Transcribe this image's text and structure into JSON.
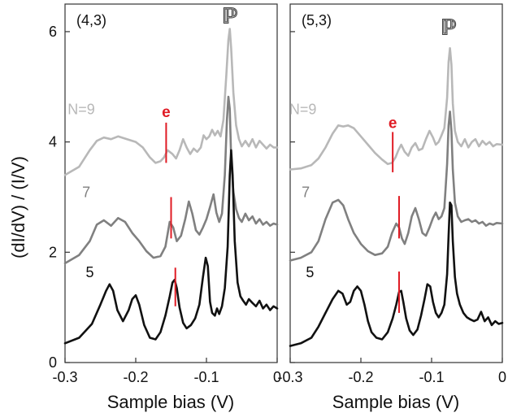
{
  "chart_data": [
    {
      "type": "line",
      "panel_label": "(4,3)",
      "xlabel": "Sample bias (V)",
      "ylabel": "(dI/dV) / (I/V)",
      "xlim": [
        -0.3,
        0
      ],
      "ylim": [
        0,
        6.5
      ],
      "xticks": [
        -0.3,
        -0.2,
        -0.1,
        0
      ],
      "xtick_labels": [
        "-0.3",
        "-0.2",
        "-0.1",
        "0"
      ],
      "yticks": [
        0,
        2,
        4,
        6
      ],
      "ytick_labels": [
        "0",
        "2",
        "4",
        "6"
      ],
      "grid": false,
      "series": [
        {
          "name": "N=9",
          "color": "#b8b8b8",
          "label_pos": [
            -0.277,
            4.5
          ],
          "x": [
            -0.3,
            -0.28,
            -0.265,
            -0.255,
            -0.245,
            -0.235,
            -0.225,
            -0.215,
            -0.2,
            -0.19,
            -0.18,
            -0.172,
            -0.165,
            -0.16,
            -0.155,
            -0.148,
            -0.143,
            -0.138,
            -0.133,
            -0.128,
            -0.123,
            -0.118,
            -0.113,
            -0.108,
            -0.104,
            -0.1,
            -0.096,
            -0.092,
            -0.088,
            -0.084,
            -0.08,
            -0.076,
            -0.072,
            -0.069,
            -0.067,
            -0.065,
            -0.062,
            -0.058,
            -0.054,
            -0.05,
            -0.045,
            -0.04,
            -0.035,
            -0.03,
            -0.025,
            -0.02,
            -0.015,
            -0.01,
            -0.005,
            0
          ],
          "y": [
            3.4,
            3.55,
            3.85,
            4.02,
            4.08,
            4.05,
            4.1,
            4.06,
            4.0,
            3.9,
            3.72,
            3.62,
            3.65,
            3.72,
            3.85,
            3.78,
            3.7,
            3.85,
            4.05,
            3.9,
            3.78,
            3.88,
            3.82,
            3.9,
            4.12,
            4.05,
            4.1,
            4.22,
            4.12,
            4.2,
            4.1,
            4.4,
            5.2,
            5.85,
            6.05,
            5.7,
            4.9,
            4.3,
            4.05,
            3.92,
            4.02,
            3.92,
            4.05,
            3.9,
            4.02,
            3.95,
            3.88,
            3.95,
            3.9,
            3.9
          ]
        },
        {
          "name": "7",
          "color": "#808080",
          "label_pos": [
            -0.27,
            3.0
          ],
          "x": [
            -0.3,
            -0.28,
            -0.265,
            -0.255,
            -0.245,
            -0.235,
            -0.225,
            -0.215,
            -0.205,
            -0.195,
            -0.185,
            -0.175,
            -0.165,
            -0.158,
            -0.152,
            -0.147,
            -0.142,
            -0.136,
            -0.13,
            -0.125,
            -0.12,
            -0.115,
            -0.11,
            -0.105,
            -0.1,
            -0.095,
            -0.09,
            -0.086,
            -0.082,
            -0.078,
            -0.074,
            -0.071,
            -0.069,
            -0.067,
            -0.065,
            -0.062,
            -0.058,
            -0.054,
            -0.05,
            -0.045,
            -0.04,
            -0.035,
            -0.03,
            -0.025,
            -0.02,
            -0.015,
            -0.01,
            -0.005,
            0
          ],
          "y": [
            1.8,
            1.95,
            2.2,
            2.5,
            2.58,
            2.48,
            2.62,
            2.55,
            2.35,
            2.2,
            2.02,
            1.9,
            1.93,
            2.1,
            2.55,
            2.45,
            2.2,
            2.3,
            2.6,
            2.92,
            2.7,
            2.4,
            2.32,
            2.45,
            2.6,
            2.82,
            3.05,
            2.72,
            2.55,
            2.7,
            3.4,
            4.4,
            4.82,
            4.6,
            3.7,
            3.1,
            2.78,
            2.62,
            2.55,
            2.7,
            2.58,
            2.65,
            2.52,
            2.6,
            2.5,
            2.55,
            2.48,
            2.52,
            2.5
          ]
        },
        {
          "name": "5",
          "color": "#111111",
          "label_pos": [
            -0.265,
            1.55
          ],
          "x": [
            -0.3,
            -0.28,
            -0.262,
            -0.25,
            -0.242,
            -0.237,
            -0.232,
            -0.226,
            -0.218,
            -0.21,
            -0.205,
            -0.2,
            -0.195,
            -0.188,
            -0.18,
            -0.172,
            -0.165,
            -0.158,
            -0.152,
            -0.148,
            -0.145,
            -0.142,
            -0.138,
            -0.133,
            -0.128,
            -0.122,
            -0.116,
            -0.11,
            -0.105,
            -0.101,
            -0.098,
            -0.095,
            -0.092,
            -0.088,
            -0.085,
            -0.082,
            -0.078,
            -0.074,
            -0.07,
            -0.067,
            -0.065,
            -0.063,
            -0.06,
            -0.056,
            -0.052,
            -0.048,
            -0.044,
            -0.04,
            -0.035,
            -0.03,
            -0.025,
            -0.02,
            -0.015,
            -0.01,
            -0.005,
            0
          ],
          "y": [
            0.35,
            0.45,
            0.7,
            1.05,
            1.3,
            1.42,
            1.3,
            0.95,
            0.75,
            0.95,
            1.15,
            1.22,
            1.05,
            0.68,
            0.45,
            0.42,
            0.55,
            0.85,
            1.2,
            1.45,
            1.5,
            1.35,
            1.0,
            0.72,
            0.62,
            0.68,
            0.8,
            1.05,
            1.55,
            1.9,
            1.75,
            1.1,
            0.9,
            0.85,
            0.98,
            0.88,
            1.02,
            1.35,
            2.1,
            3.4,
            3.85,
            3.4,
            2.2,
            1.45,
            1.2,
            1.12,
            1.05,
            1.15,
            1.08,
            1.02,
            1.12,
            0.98,
            1.05,
            0.95,
            1.02,
            0.98
          ]
        }
      ],
      "markers": [
        {
          "type": "tick",
          "x": -0.157,
          "y1": 3.62,
          "y2": 4.35,
          "label": "e",
          "label_pos": [
            -0.157,
            4.45
          ]
        },
        {
          "type": "tick",
          "x": -0.15,
          "y1": 2.25,
          "y2": 3.0
        },
        {
          "type": "tick",
          "x": -0.144,
          "y1": 1.02,
          "y2": 1.72
        }
      ],
      "peak_label": {
        "text": "ℙ",
        "x": -0.067,
        "y": 6.15
      }
    },
    {
      "type": "line",
      "panel_label": "(5,3)",
      "xlabel": "Sample bias (V)",
      "xlim": [
        -0.3,
        0
      ],
      "ylim": [
        0,
        6.5
      ],
      "xticks": [
        -0.3,
        -0.2,
        -0.1,
        0
      ],
      "xtick_labels": [
        "-0.3",
        "-0.2",
        "-0.1",
        "0"
      ],
      "grid": false,
      "series": [
        {
          "name": "N=9",
          "color": "#b8b8b8",
          "label_pos": [
            -0.282,
            4.5
          ],
          "x": [
            -0.3,
            -0.285,
            -0.27,
            -0.26,
            -0.25,
            -0.24,
            -0.232,
            -0.225,
            -0.218,
            -0.21,
            -0.2,
            -0.19,
            -0.18,
            -0.17,
            -0.162,
            -0.156,
            -0.151,
            -0.147,
            -0.143,
            -0.138,
            -0.133,
            -0.128,
            -0.123,
            -0.118,
            -0.113,
            -0.108,
            -0.103,
            -0.098,
            -0.094,
            -0.09,
            -0.086,
            -0.082,
            -0.078,
            -0.076,
            -0.074,
            -0.072,
            -0.07,
            -0.067,
            -0.063,
            -0.058,
            -0.053,
            -0.048,
            -0.043,
            -0.038,
            -0.033,
            -0.028,
            -0.023,
            -0.018,
            -0.013,
            -0.008,
            0
          ],
          "y": [
            3.5,
            3.52,
            3.58,
            3.7,
            3.9,
            4.15,
            4.3,
            4.28,
            4.3,
            4.25,
            4.1,
            3.95,
            3.8,
            3.68,
            3.6,
            3.62,
            3.72,
            3.85,
            3.95,
            3.82,
            3.75,
            3.9,
            3.98,
            3.85,
            3.88,
            4.05,
            4.2,
            4.08,
            3.95,
            4.0,
            4.12,
            4.25,
            4.8,
            5.45,
            5.7,
            5.4,
            4.7,
            4.2,
            4.0,
            3.92,
            4.05,
            3.9,
            4.0,
            4.05,
            3.92,
            4.02,
            3.95,
            4.0,
            3.92,
            3.96,
            3.95
          ]
        },
        {
          "name": "7",
          "color": "#808080",
          "label_pos": [
            -0.278,
            3.0
          ],
          "x": [
            -0.3,
            -0.285,
            -0.27,
            -0.26,
            -0.25,
            -0.24,
            -0.232,
            -0.225,
            -0.218,
            -0.21,
            -0.2,
            -0.19,
            -0.18,
            -0.17,
            -0.162,
            -0.156,
            -0.15,
            -0.146,
            -0.142,
            -0.138,
            -0.133,
            -0.128,
            -0.123,
            -0.118,
            -0.113,
            -0.108,
            -0.103,
            -0.098,
            -0.094,
            -0.09,
            -0.086,
            -0.082,
            -0.078,
            -0.076,
            -0.074,
            -0.072,
            -0.07,
            -0.067,
            -0.063,
            -0.058,
            -0.053,
            -0.048,
            -0.043,
            -0.038,
            -0.033,
            -0.028,
            -0.023,
            -0.018,
            -0.013,
            -0.008,
            0
          ],
          "y": [
            1.85,
            1.9,
            2.0,
            2.2,
            2.6,
            2.9,
            2.95,
            2.85,
            2.6,
            2.35,
            2.15,
            2.02,
            1.95,
            1.98,
            2.1,
            2.35,
            2.52,
            2.45,
            2.25,
            2.15,
            2.35,
            2.65,
            2.8,
            2.6,
            2.35,
            2.3,
            2.45,
            2.62,
            2.72,
            2.6,
            2.65,
            2.8,
            3.6,
            4.3,
            4.55,
            4.2,
            3.5,
            2.9,
            2.65,
            2.55,
            2.58,
            2.6,
            2.55,
            2.58,
            2.52,
            2.55,
            2.48,
            2.52,
            2.5,
            2.53,
            2.52
          ]
        },
        {
          "name": "5",
          "color": "#111111",
          "label_pos": [
            -0.272,
            1.55
          ],
          "x": [
            -0.3,
            -0.285,
            -0.27,
            -0.26,
            -0.25,
            -0.24,
            -0.232,
            -0.226,
            -0.22,
            -0.215,
            -0.21,
            -0.205,
            -0.2,
            -0.195,
            -0.19,
            -0.185,
            -0.178,
            -0.17,
            -0.162,
            -0.155,
            -0.15,
            -0.146,
            -0.143,
            -0.14,
            -0.136,
            -0.131,
            -0.126,
            -0.12,
            -0.115,
            -0.11,
            -0.106,
            -0.102,
            -0.098,
            -0.094,
            -0.09,
            -0.086,
            -0.082,
            -0.078,
            -0.076,
            -0.074,
            -0.072,
            -0.07,
            -0.067,
            -0.064,
            -0.06,
            -0.055,
            -0.05,
            -0.045,
            -0.04,
            -0.035,
            -0.03,
            -0.025,
            -0.02,
            -0.015,
            -0.01,
            -0.005,
            0
          ],
          "y": [
            0.3,
            0.35,
            0.45,
            0.65,
            0.9,
            1.15,
            1.3,
            1.25,
            1.05,
            1.1,
            1.3,
            1.38,
            1.3,
            1.05,
            0.75,
            0.55,
            0.45,
            0.42,
            0.55,
            0.8,
            1.05,
            1.28,
            1.3,
            1.1,
            0.8,
            0.58,
            0.5,
            0.6,
            0.85,
            1.15,
            1.42,
            1.38,
            1.1,
            0.9,
            0.82,
            0.9,
            1.05,
            1.6,
            2.3,
            2.9,
            2.85,
            2.2,
            1.55,
            1.25,
            1.05,
            0.9,
            0.82,
            0.78,
            0.75,
            0.78,
            0.92,
            0.75,
            0.82,
            0.68,
            0.75,
            0.7,
            0.72
          ]
        }
      ],
      "markers": [
        {
          "type": "tick",
          "x": -0.155,
          "y1": 3.45,
          "y2": 4.18,
          "label": "e",
          "label_pos": [
            -0.155,
            4.25
          ]
        },
        {
          "type": "tick",
          "x": -0.146,
          "y1": 2.25,
          "y2": 3.02
        },
        {
          "type": "tick",
          "x": -0.146,
          "y1": 0.9,
          "y2": 1.65
        }
      ],
      "peak_label": {
        "text": "ℙ",
        "x": -0.076,
        "y": 5.95
      }
    }
  ]
}
